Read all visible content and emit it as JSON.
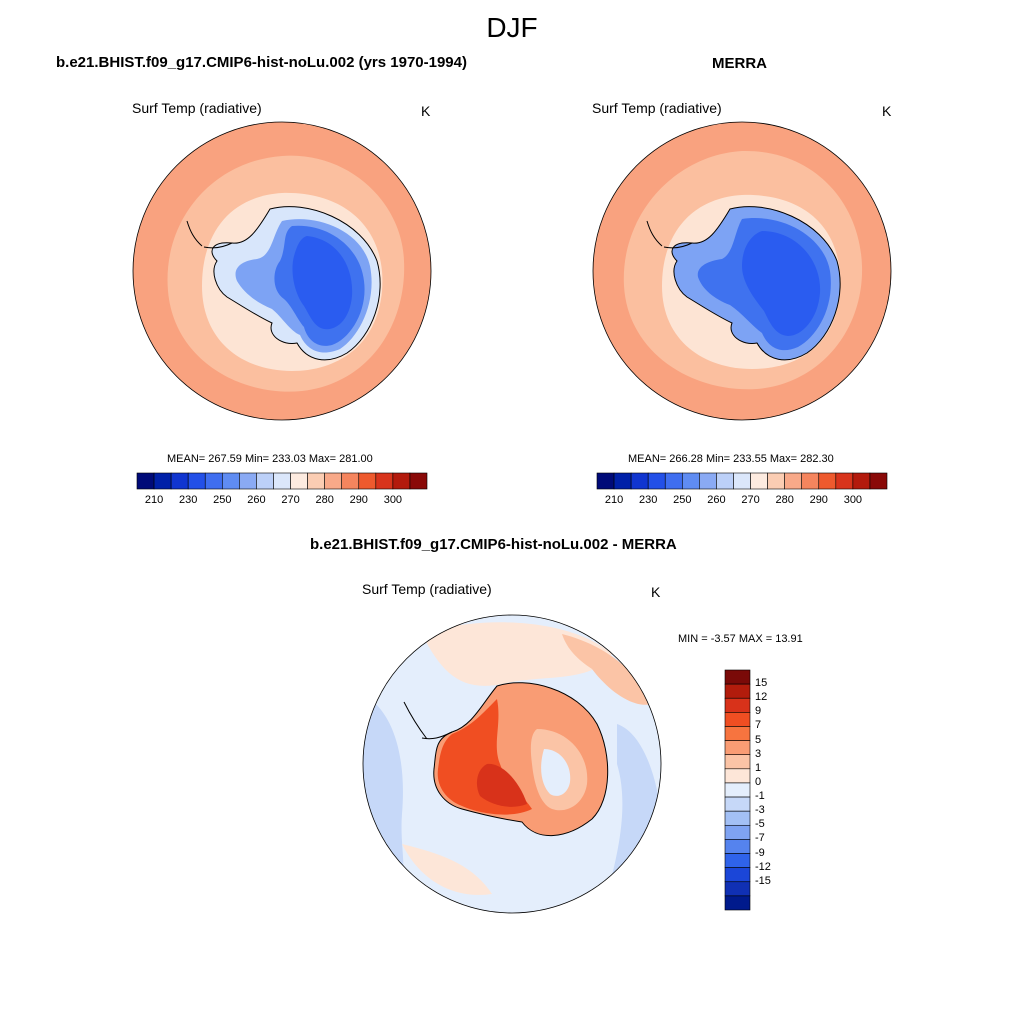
{
  "page": {
    "title": "DJF"
  },
  "colors": {
    "ocean_warm": "#f9a27f",
    "ocean_mid": "#fbbf9f",
    "ice_edge": "#fde4d4",
    "ice_light": "#d8e6fb",
    "land_mid": "#7da3f4",
    "land_cold": "#3f72ef",
    "land_coldest": "#2a5cf0",
    "coast": "#000000"
  },
  "panels": [
    {
      "id": "model",
      "title": "b.e21.BHIST.f09_g17.CMIP6-hist-noLu.002 (yrs 1970-1994)",
      "variable": "Surf Temp (radiative)",
      "units": "K",
      "stats": "MEAN= 267.59  Min= 233.03  Max= 281.00",
      "colorbar": {
        "colors": [
          "#000a78",
          "#0020a8",
          "#1035d0",
          "#2350e8",
          "#3f6ef0",
          "#5f8cf2",
          "#8aaaf4",
          "#bcd0f8",
          "#dbe7fb",
          "#fdebe0",
          "#fbcdb3",
          "#f8a989",
          "#f5855e",
          "#ee5a2e",
          "#d8341c",
          "#b31a0d",
          "#8a0a08"
        ],
        "labels": [
          "210",
          "230",
          "250",
          "260",
          "270",
          "280",
          "290",
          "300"
        ]
      }
    },
    {
      "id": "obs",
      "title": "MERRA",
      "variable": "Surf Temp (radiative)",
      "units": "K",
      "stats": "MEAN= 266.28  Min= 233.55  Max= 282.30",
      "colorbar": {
        "colors": [
          "#000a78",
          "#0020a8",
          "#1035d0",
          "#2350e8",
          "#3f6ef0",
          "#5f8cf2",
          "#8aaaf4",
          "#bcd0f8",
          "#dbe7fb",
          "#fdebe0",
          "#fbcdb3",
          "#f8a989",
          "#f5855e",
          "#ee5a2e",
          "#d8341c",
          "#b31a0d",
          "#8a0a08"
        ],
        "labels": [
          "210",
          "230",
          "250",
          "260",
          "270",
          "280",
          "290",
          "300"
        ]
      }
    },
    {
      "id": "diff",
      "title": "b.e21.BHIST.f09_g17.CMIP6-hist-noLu.002 - MERRA",
      "variable": "Surf Temp (radiative)",
      "units": "K",
      "stats": "MIN =  -3.57 MAX =  13.91",
      "colorbar": {
        "colors": [
          "#7a0a08",
          "#b21c0c",
          "#d8321a",
          "#f04e22",
          "#f7743f",
          "#f99c74",
          "#fbc4a6",
          "#fde6d8",
          "#e4eefc",
          "#c6d8f8",
          "#a3c0f5",
          "#7fa3f2",
          "#5583ee",
          "#2f63ea",
          "#1b46d8",
          "#1030b4",
          "#001a8c"
        ],
        "labels": [
          "15",
          "12",
          "9",
          "7",
          "5",
          "3",
          "1",
          "0",
          "-1",
          "-3",
          "-5",
          "-7",
          "-9",
          "-12",
          "-15"
        ]
      }
    }
  ]
}
